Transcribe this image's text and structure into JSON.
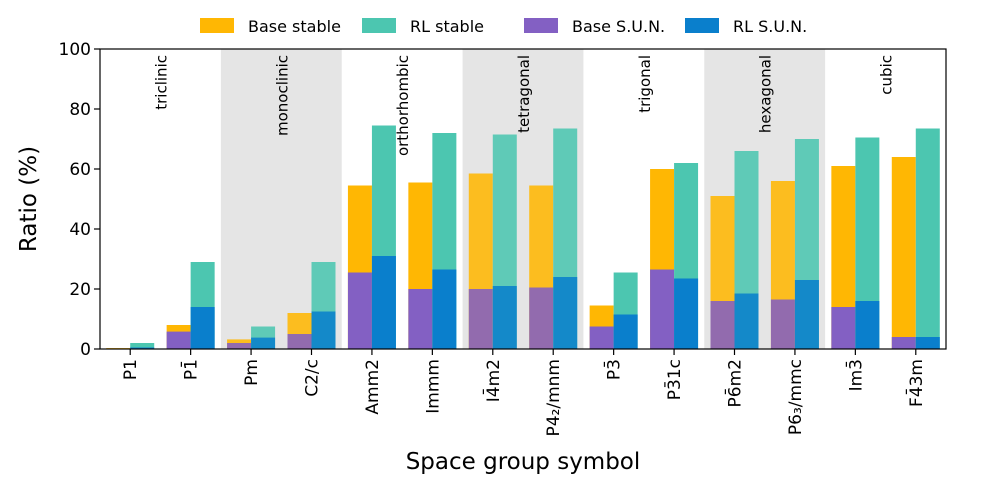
{
  "chart_data": {
    "type": "bar",
    "title": "",
    "xlabel": "Space group symbol",
    "ylabel": "Ratio (%)",
    "ylim": [
      0,
      100
    ],
    "yticks": [
      "0",
      "20",
      "40",
      "60",
      "80",
      "100"
    ],
    "legend": {
      "placement": "top-center",
      "entries": [
        {
          "name": "Base stable",
          "color": "#FFB703"
        },
        {
          "name": "RL stable",
          "color": "#4CC6B0"
        },
        {
          "name": "Base S.U.N.",
          "color": "#8360C3"
        },
        {
          "name": "RL S.U.N.",
          "color": "#0A7FCC"
        }
      ]
    },
    "categories": [
      "P1",
      "P1̄",
      "Pm",
      "C2/c",
      "Amm2",
      "Immm",
      "I4̄m2",
      "P4₂/mnm",
      "P3̄",
      "P3̄1c",
      "P6̄m2",
      "P6₃/mmc",
      "Im3̄",
      "F4̄3m"
    ],
    "crystal_systems": [
      {
        "name": "triclinic",
        "span": [
          0,
          1
        ],
        "shaded": false
      },
      {
        "name": "monoclinic",
        "span": [
          2,
          3
        ],
        "shaded": true
      },
      {
        "name": "orthorhombic",
        "span": [
          4,
          5
        ],
        "shaded": false
      },
      {
        "name": "tetragonal",
        "span": [
          6,
          7
        ],
        "shaded": true
      },
      {
        "name": "trigonal",
        "span": [
          8,
          9
        ],
        "shaded": false
      },
      {
        "name": "hexagonal",
        "span": [
          10,
          11
        ],
        "shaded": true
      },
      {
        "name": "cubic",
        "span": [
          12,
          13
        ],
        "shaded": false
      }
    ],
    "series": [
      {
        "name": "Base stable",
        "values": [
          0.3,
          8.0,
          3.2,
          12.0,
          54.5,
          55.5,
          58.5,
          54.5,
          14.5,
          60.0,
          51.0,
          56.0,
          61.0,
          64.0
        ]
      },
      {
        "name": "RL stable",
        "values": [
          2.0,
          29.0,
          7.5,
          29.0,
          74.5,
          72.0,
          71.5,
          73.5,
          25.5,
          62.0,
          66.0,
          70.0,
          70.5,
          73.5
        ]
      },
      {
        "name": "Base S.U.N.",
        "values": [
          0.0,
          5.8,
          2.0,
          5.0,
          25.5,
          20.0,
          20.0,
          20.5,
          7.5,
          26.5,
          16.0,
          16.5,
          14.0,
          4.0
        ]
      },
      {
        "name": "RL S.U.N.",
        "values": [
          0.5,
          14.0,
          3.8,
          12.5,
          31.0,
          26.5,
          21.0,
          24.0,
          11.5,
          23.5,
          18.5,
          23.0,
          16.0,
          4.0
        ]
      }
    ]
  }
}
